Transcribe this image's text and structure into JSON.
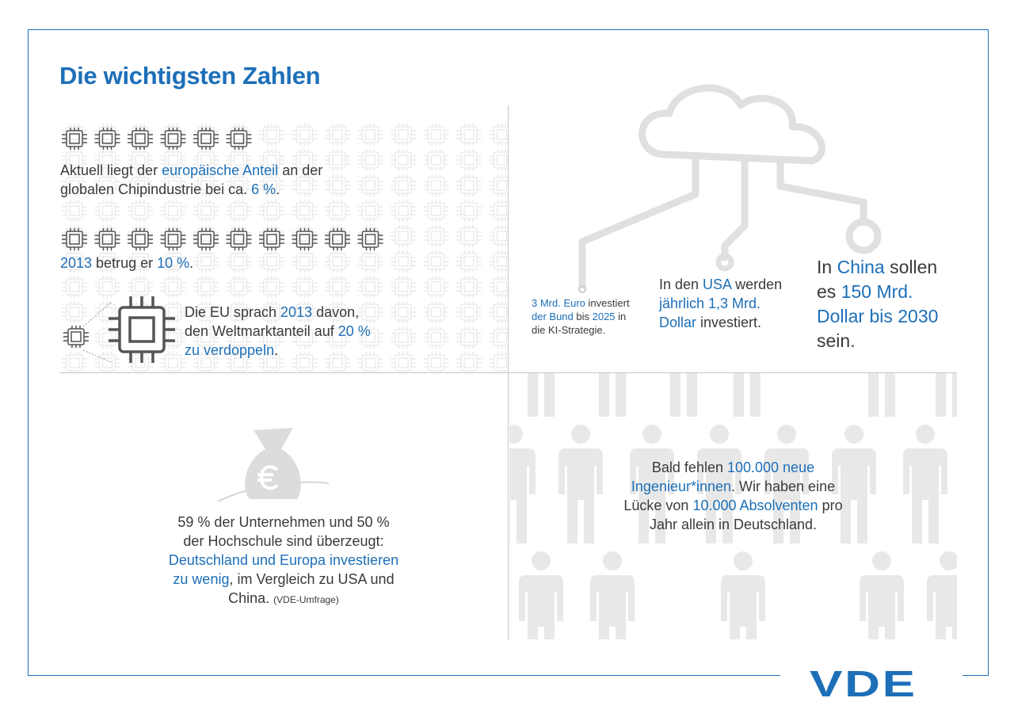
{
  "title": "Die wichtigsten Zahlen",
  "chips": {
    "share_now": {
      "pre": "Aktuell liegt der ",
      "hl1": "europäische Anteil",
      "mid": " an der",
      "line2": "globalen Chipindustrie bei ca. ",
      "hl2": "6 %",
      "end": "."
    },
    "share_2013": {
      "hl1": "2013",
      "mid": " betrug er ",
      "hl2": "10 %",
      "end": "."
    },
    "eu_goal": {
      "pre": "Die EU sprach ",
      "hl1": "2013",
      "mid": " davon,",
      "line2": "den Weltmarktanteil auf ",
      "hl2": "20 %",
      "line3": "zu verdoppeln",
      "end": "."
    }
  },
  "ai": {
    "germany": {
      "hl1": "3 Mrd. Euro",
      "t1": " investiert",
      "hl2": "der Bund",
      "t2": " bis ",
      "hl3": "2025",
      "t3": " in",
      "line3": "die KI-Strategie."
    },
    "usa": {
      "pre": "In den ",
      "hl1": "USA",
      "mid": " werden",
      "hl2": "jährlich 1,3 Mrd.",
      "hl3": "Dollar",
      "end": " investiert."
    },
    "china": {
      "pre": "In ",
      "hl1": "China",
      "mid": " sollen",
      "line2": "es ",
      "hl2": "150 Mrd.",
      "hl3": "Dollar bis 2030",
      "end": "sein."
    }
  },
  "survey": {
    "line1": "59 % der Unternehmen und 50 %",
    "line2": "der Hochschule sind überzeugt:",
    "hl1": "Deutschland und Europa investieren",
    "hl2": "zu wenig",
    "line4rest": ", im Vergleich zu USA und",
    "line5": "China. ",
    "source": "(VDE-Umfrage)"
  },
  "engineers": {
    "pre": "Bald fehlen ",
    "hl1": "100.000 neue",
    "hl2": "Ingenieur*innen",
    "mid": ". Wir haben eine",
    "line3": "Lücke von ",
    "hl3": "10.000 Absolventen",
    "t3": " pro",
    "line4": "Jahr allein in Deutschland."
  },
  "logo": "VDE",
  "colors": {
    "accent": "#1d6fb8",
    "text": "#3a3a3a",
    "muted": "#e6e6e6"
  }
}
